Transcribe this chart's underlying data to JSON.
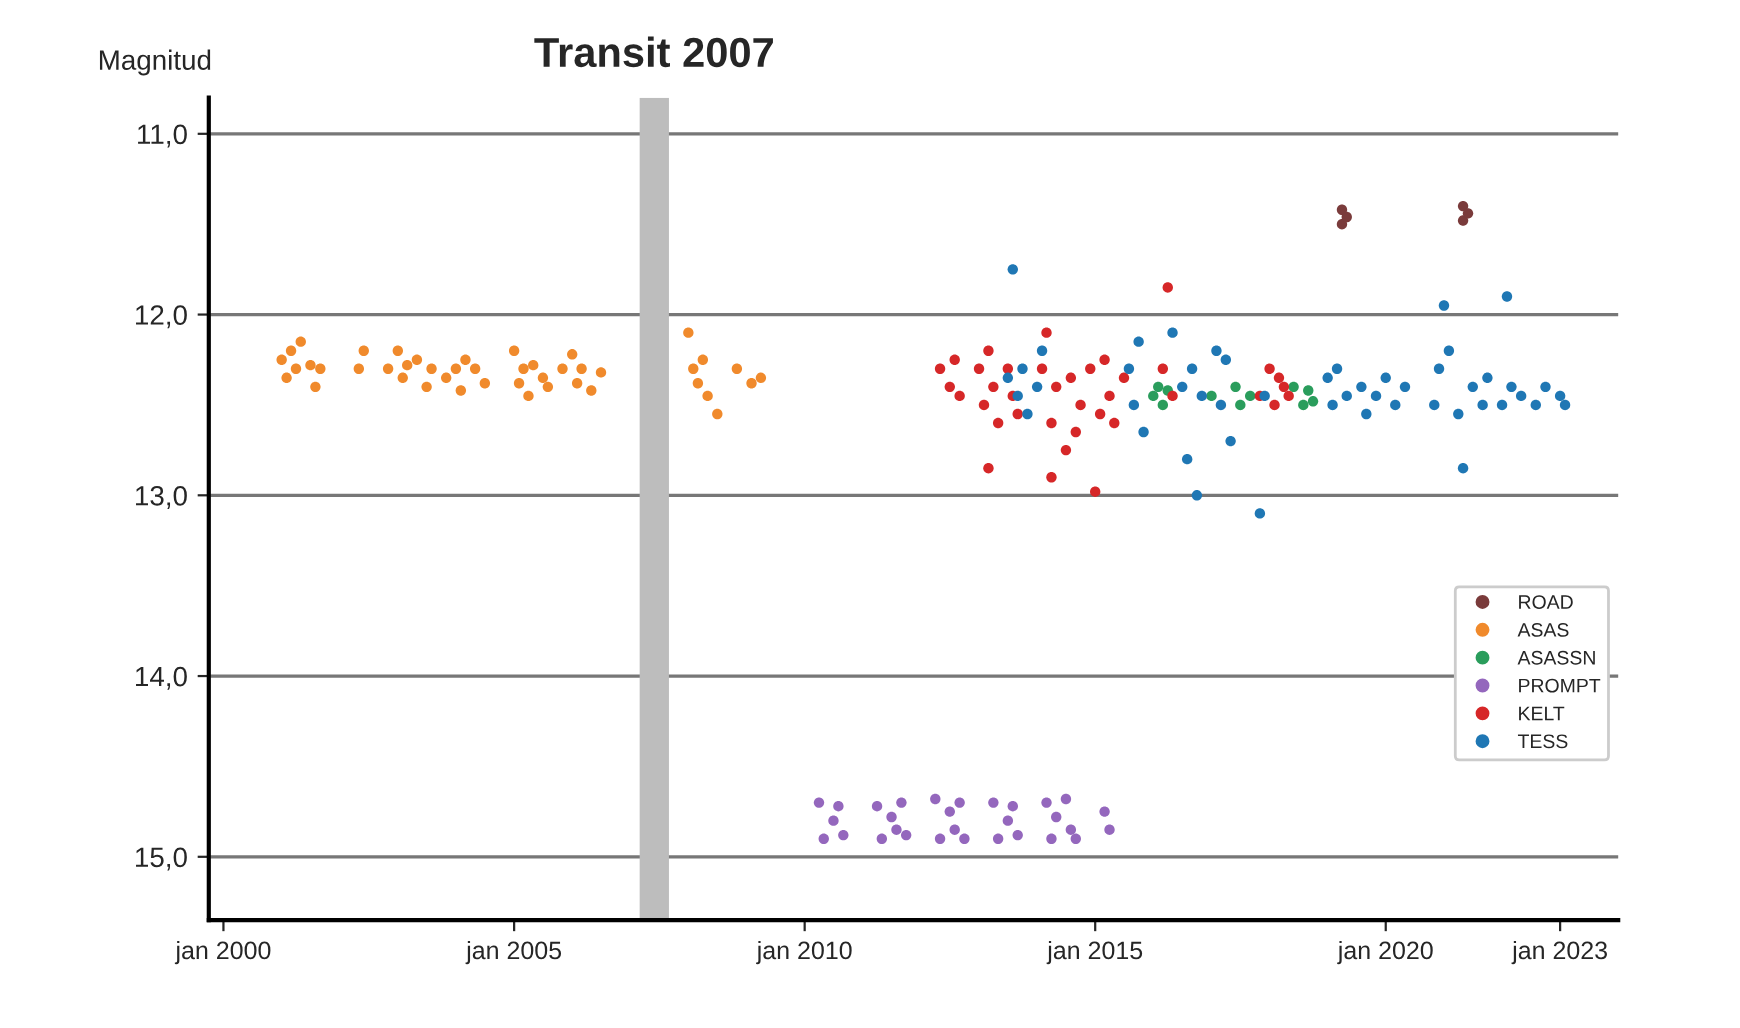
{
  "chart_data": {
    "type": "scatter",
    "ylabel": "Magnitud",
    "xlim": [
      "1999-10",
      "2024-01"
    ],
    "ylim": [
      15.35,
      10.8
    ],
    "xticks": [
      {
        "value": "2000-01",
        "label": "jan 2000"
      },
      {
        "value": "2005-01",
        "label": "jan 2005"
      },
      {
        "value": "2010-01",
        "label": "jan 2010"
      },
      {
        "value": "2015-01",
        "label": "jan 2015"
      },
      {
        "value": "2020-01",
        "label": "jan 2020"
      },
      {
        "value": "2023-01",
        "label": "jan 2023"
      }
    ],
    "yticks": [
      {
        "value": 11,
        "label": "11,0"
      },
      {
        "value": 12,
        "label": "12,0"
      },
      {
        "value": 13,
        "label": "13,0"
      },
      {
        "value": 14,
        "label": "14,0"
      },
      {
        "value": 15,
        "label": "15,0"
      }
    ],
    "grid": "y",
    "legend": "right",
    "marker": "circle",
    "bands": [
      {
        "axis": "x",
        "from": "2007-03",
        "to": "2007-09",
        "label": "Transit 2007",
        "color": "#bdbdbd"
      }
    ],
    "series": [
      {
        "name": "ROAD",
        "color": "#7a3b3b",
        "x": [
          "2019-04",
          "2019-04",
          "2019-05",
          "2021-05",
          "2021-05",
          "2021-06"
        ],
        "values": [
          11.42,
          11.5,
          11.46,
          11.4,
          11.48,
          11.44
        ]
      },
      {
        "name": "ASAS",
        "color": "#f08a2c",
        "x": [
          "2001-01",
          "2001-02",
          "2001-03",
          "2001-04",
          "2001-05",
          "2001-07",
          "2001-08",
          "2001-09",
          "2002-05",
          "2002-06",
          "2002-11",
          "2003-01",
          "2003-02",
          "2003-03",
          "2003-05",
          "2003-07",
          "2003-08",
          "2003-11",
          "2004-01",
          "2004-02",
          "2004-03",
          "2004-05",
          "2004-07",
          "2005-01",
          "2005-02",
          "2005-03",
          "2005-04",
          "2005-05",
          "2005-07",
          "2005-08",
          "2005-11",
          "2006-01",
          "2006-02",
          "2006-03",
          "2006-05",
          "2006-07",
          "2008-01",
          "2008-02",
          "2008-03",
          "2008-04",
          "2008-05",
          "2008-07",
          "2008-11",
          "2009-02",
          "2009-04"
        ],
        "values": [
          12.25,
          12.35,
          12.2,
          12.3,
          12.15,
          12.28,
          12.4,
          12.3,
          12.3,
          12.2,
          12.3,
          12.2,
          12.35,
          12.28,
          12.25,
          12.4,
          12.3,
          12.35,
          12.3,
          12.42,
          12.25,
          12.3,
          12.38,
          12.2,
          12.38,
          12.3,
          12.45,
          12.28,
          12.35,
          12.4,
          12.3,
          12.22,
          12.38,
          12.3,
          12.42,
          12.32,
          12.1,
          12.3,
          12.38,
          12.25,
          12.45,
          12.55,
          12.3,
          12.38,
          12.35
        ]
      },
      {
        "name": "ASASSN",
        "color": "#2a9d5c",
        "x": [
          "2016-01",
          "2016-02",
          "2016-03",
          "2016-04",
          "2017-01",
          "2017-06",
          "2017-07",
          "2017-09",
          "2018-06",
          "2018-08",
          "2018-09",
          "2018-10"
        ],
        "values": [
          12.45,
          12.4,
          12.5,
          12.42,
          12.45,
          12.4,
          12.5,
          12.45,
          12.4,
          12.5,
          12.42,
          12.48
        ]
      },
      {
        "name": "PROMPT",
        "color": "#9467bd",
        "x": [
          "2010-04",
          "2010-05",
          "2010-07",
          "2010-08",
          "2010-09",
          "2011-04",
          "2011-05",
          "2011-07",
          "2011-08",
          "2011-09",
          "2011-10",
          "2012-04",
          "2012-05",
          "2012-07",
          "2012-08",
          "2012-09",
          "2012-10",
          "2013-04",
          "2013-05",
          "2013-07",
          "2013-08",
          "2013-09",
          "2014-03",
          "2014-04",
          "2014-05",
          "2014-07",
          "2014-08",
          "2014-09",
          "2015-03",
          "2015-04"
        ],
        "values": [
          14.7,
          14.9,
          14.8,
          14.72,
          14.88,
          14.72,
          14.9,
          14.78,
          14.85,
          14.7,
          14.88,
          14.68,
          14.9,
          14.75,
          14.85,
          14.7,
          14.9,
          14.7,
          14.9,
          14.8,
          14.72,
          14.88,
          14.7,
          14.9,
          14.78,
          14.68,
          14.85,
          14.9,
          14.75,
          14.85
        ]
      },
      {
        "name": "KELT",
        "color": "#d62728",
        "x": [
          "2012-05",
          "2012-07",
          "2012-08",
          "2012-09",
          "2013-01",
          "2013-02",
          "2013-03",
          "2013-04",
          "2013-05",
          "2013-07",
          "2013-08",
          "2013-09",
          "2013-03",
          "2014-02",
          "2014-03",
          "2014-04",
          "2014-05",
          "2014-07",
          "2014-08",
          "2014-09",
          "2014-10",
          "2014-04",
          "2014-12",
          "2015-01",
          "2015-02",
          "2015-03",
          "2015-04",
          "2015-05",
          "2015-07",
          "2016-03",
          "2016-04",
          "2016-05",
          "2017-11",
          "2018-01",
          "2018-02",
          "2018-03",
          "2018-04",
          "2018-05"
        ],
        "values": [
          12.3,
          12.4,
          12.25,
          12.45,
          12.3,
          12.5,
          12.2,
          12.4,
          12.6,
          12.3,
          12.45,
          12.55,
          12.85,
          12.3,
          12.1,
          12.6,
          12.4,
          12.75,
          12.35,
          12.65,
          12.5,
          12.9,
          12.3,
          12.98,
          12.55,
          12.25,
          12.45,
          12.6,
          12.35,
          12.3,
          11.85,
          12.45,
          12.45,
          12.3,
          12.5,
          12.35,
          12.4,
          12.45
        ]
      },
      {
        "name": "TESS",
        "color": "#1f77b4",
        "x": [
          "2013-07",
          "2013-08",
          "2013-09",
          "2013-10",
          "2013-11",
          "2014-01",
          "2014-02",
          "2015-08",
          "2015-09",
          "2015-10",
          "2015-11",
          "2016-05",
          "2016-07",
          "2016-08",
          "2016-09",
          "2016-10",
          "2016-11",
          "2017-02",
          "2017-03",
          "2017-04",
          "2017-05",
          "2017-11",
          "2017-12",
          "2019-01",
          "2019-02",
          "2019-03",
          "2019-05",
          "2019-08",
          "2019-09",
          "2019-11",
          "2020-01",
          "2020-03",
          "2020-05",
          "2020-11",
          "2020-12",
          "2021-01",
          "2021-02",
          "2021-04",
          "2021-05",
          "2021-07",
          "2021-09",
          "2021-10",
          "2022-01",
          "2022-02",
          "2022-03",
          "2022-05",
          "2022-08",
          "2022-10",
          "2023-01",
          "2023-02"
        ],
        "values": [
          12.35,
          11.75,
          12.45,
          12.3,
          12.55,
          12.4,
          12.2,
          12.3,
          12.5,
          12.15,
          12.65,
          12.1,
          12.4,
          12.8,
          12.3,
          13.0,
          12.45,
          12.2,
          12.5,
          12.25,
          12.7,
          13.1,
          12.45,
          12.35,
          12.5,
          12.3,
          12.45,
          12.4,
          12.55,
          12.45,
          12.35,
          12.5,
          12.4,
          12.5,
          12.3,
          11.95,
          12.2,
          12.55,
          12.85,
          12.4,
          12.5,
          12.35,
          12.5,
          11.9,
          12.4,
          12.45,
          12.5,
          12.4,
          12.45,
          12.5
        ]
      }
    ]
  }
}
